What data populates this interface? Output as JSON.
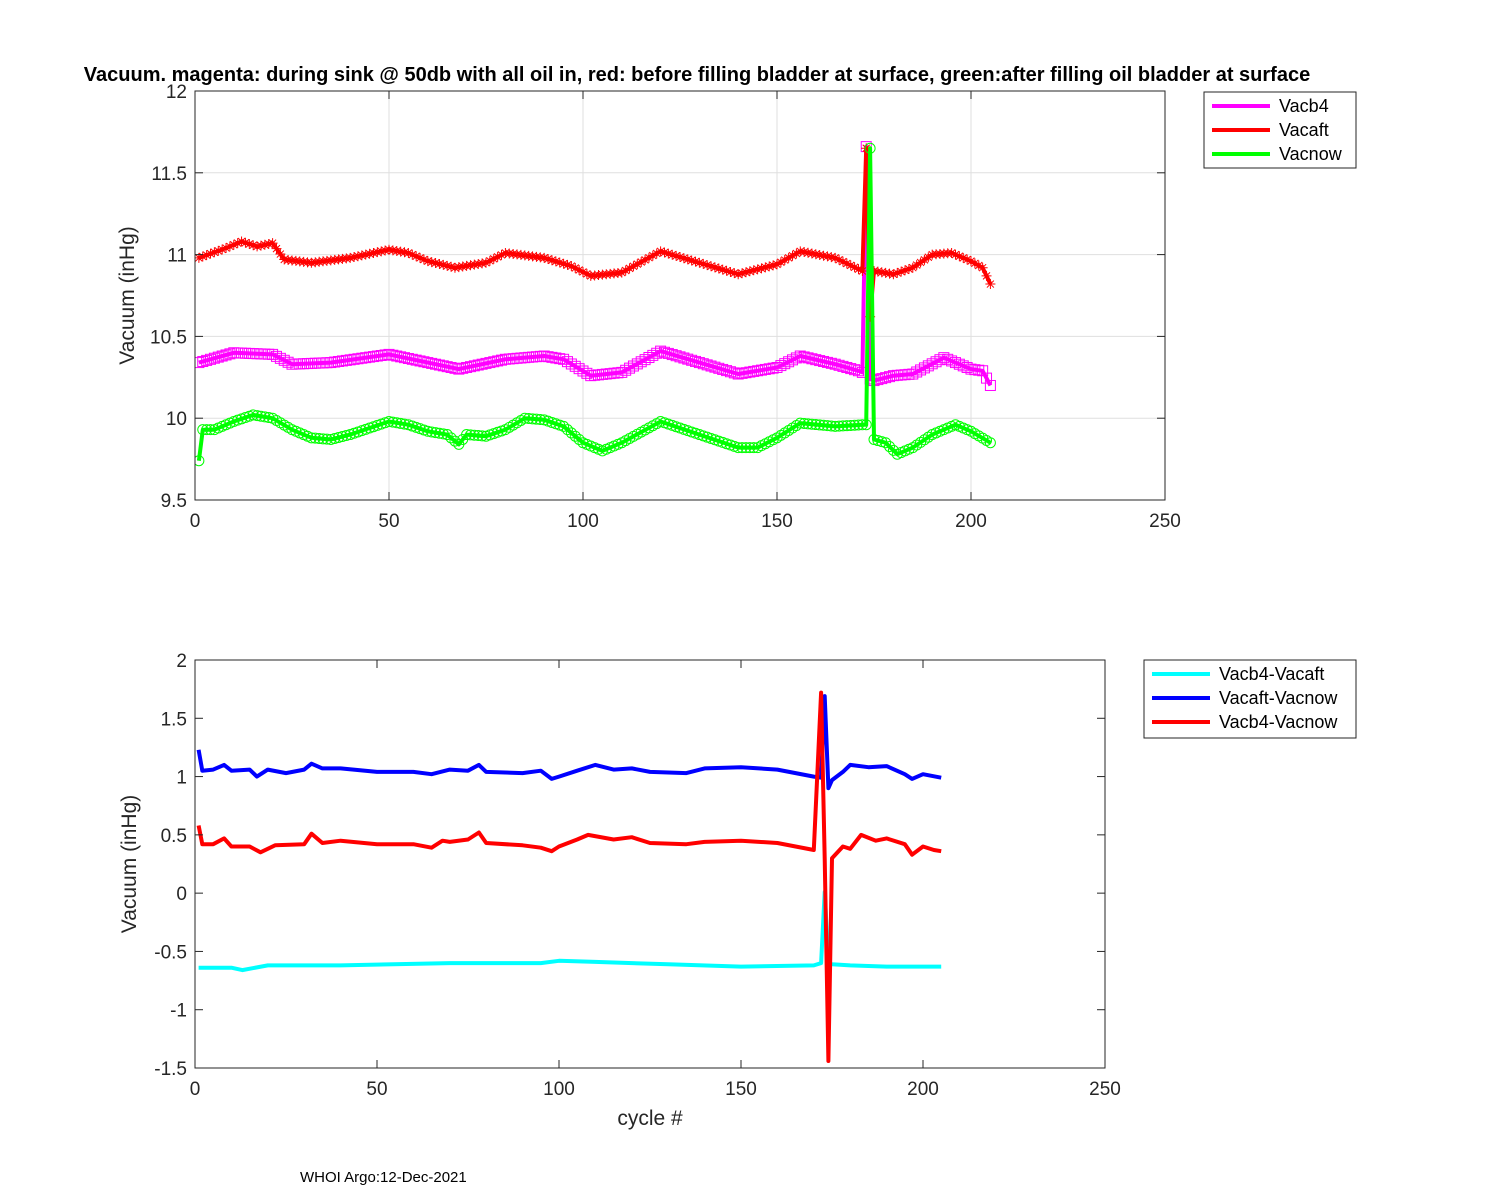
{
  "figure": {
    "title": "Vacuum. magenta: during sink @ 50db with all oil in, red: before filling bladder at surface, green:after filling oil bladder at surface",
    "footer": "WHOI Argo:12-Dec-2021"
  },
  "chart_data": [
    {
      "type": "line",
      "title": "Vacuum. magenta: during sink @ 50db with all oil in, red: before filling bladder at surface, green:after filling oil bladder at surface",
      "xlabel": "",
      "ylabel": "Vacuum (inHg)",
      "xlim": [
        0,
        250
      ],
      "ylim": [
        9.5,
        12
      ],
      "xticks": [
        "0",
        "50",
        "100",
        "150",
        "200",
        "250"
      ],
      "yticks": [
        "9.5",
        "10",
        "10.5",
        "11",
        "11.5",
        "12"
      ],
      "grid": true,
      "legend_position": "outside-top-right",
      "series": [
        {
          "name": "Vacb4",
          "color": "#ff00ff",
          "marker": "square",
          "points": [
            [
              1,
              10.34
            ],
            [
              10,
              10.4
            ],
            [
              20,
              10.39
            ],
            [
              25,
              10.33
            ],
            [
              35,
              10.34
            ],
            [
              50,
              10.39
            ],
            [
              60,
              10.34
            ],
            [
              68,
              10.3
            ],
            [
              80,
              10.36
            ],
            [
              90,
              10.38
            ],
            [
              95,
              10.36
            ],
            [
              102,
              10.26
            ],
            [
              110,
              10.28
            ],
            [
              120,
              10.41
            ],
            [
              130,
              10.34
            ],
            [
              140,
              10.27
            ],
            [
              150,
              10.31
            ],
            [
              156,
              10.38
            ],
            [
              165,
              10.33
            ],
            [
              171,
              10.29
            ],
            [
              172,
              10.28
            ],
            [
              173,
              11.66
            ],
            [
              174,
              10.24
            ],
            [
              175,
              10.23
            ],
            [
              180,
              10.26
            ],
            [
              185,
              10.27
            ],
            [
              193,
              10.37
            ],
            [
              200,
              10.3
            ],
            [
              203,
              10.29
            ],
            [
              205,
              10.2
            ]
          ]
        },
        {
          "name": "Vacaft",
          "color": "#ff0000",
          "marker": "star",
          "points": [
            [
              1,
              10.98
            ],
            [
              8,
              11.04
            ],
            [
              12,
              11.08
            ],
            [
              16,
              11.05
            ],
            [
              20,
              11.07
            ],
            [
              23,
              10.97
            ],
            [
              30,
              10.95
            ],
            [
              40,
              10.98
            ],
            [
              50,
              11.03
            ],
            [
              55,
              11.01
            ],
            [
              60,
              10.96
            ],
            [
              67,
              10.92
            ],
            [
              75,
              10.95
            ],
            [
              80,
              11.01
            ],
            [
              90,
              10.98
            ],
            [
              97,
              10.93
            ],
            [
              102,
              10.87
            ],
            [
              110,
              10.89
            ],
            [
              120,
              11.02
            ],
            [
              130,
              10.95
            ],
            [
              140,
              10.88
            ],
            [
              150,
              10.94
            ],
            [
              156,
              11.02
            ],
            [
              165,
              10.98
            ],
            [
              172,
              10.9
            ],
            [
              173,
              11.65
            ],
            [
              174,
              10.62
            ],
            [
              175,
              10.9
            ],
            [
              180,
              10.88
            ],
            [
              185,
              10.92
            ],
            [
              190,
              11.0
            ],
            [
              195,
              11.01
            ],
            [
              200,
              10.96
            ],
            [
              203,
              10.92
            ],
            [
              205,
              10.82
            ]
          ]
        },
        {
          "name": "Vacnow",
          "color": "#00ff00",
          "marker": "circle",
          "points": [
            [
              1,
              9.74
            ],
            [
              2,
              9.93
            ],
            [
              5,
              9.93
            ],
            [
              10,
              9.98
            ],
            [
              15,
              10.02
            ],
            [
              20,
              10.0
            ],
            [
              25,
              9.93
            ],
            [
              30,
              9.88
            ],
            [
              35,
              9.87
            ],
            [
              40,
              9.9
            ],
            [
              45,
              9.94
            ],
            [
              50,
              9.98
            ],
            [
              55,
              9.96
            ],
            [
              60,
              9.92
            ],
            [
              65,
              9.9
            ],
            [
              68,
              9.84
            ],
            [
              70,
              9.9
            ],
            [
              75,
              9.89
            ],
            [
              80,
              9.93
            ],
            [
              85,
              10.0
            ],
            [
              90,
              9.99
            ],
            [
              95,
              9.95
            ],
            [
              100,
              9.85
            ],
            [
              105,
              9.8
            ],
            [
              110,
              9.85
            ],
            [
              120,
              9.98
            ],
            [
              130,
              9.9
            ],
            [
              140,
              9.82
            ],
            [
              145,
              9.82
            ],
            [
              150,
              9.88
            ],
            [
              156,
              9.97
            ],
            [
              165,
              9.95
            ],
            [
              172,
              9.96
            ],
            [
              173,
              9.96
            ],
            [
              174,
              11.65
            ],
            [
              175,
              9.87
            ],
            [
              178,
              9.85
            ],
            [
              181,
              9.78
            ],
            [
              185,
              9.82
            ],
            [
              190,
              9.9
            ],
            [
              196,
              9.96
            ],
            [
              200,
              9.92
            ],
            [
              205,
              9.85
            ]
          ]
        }
      ]
    },
    {
      "type": "line",
      "title": "",
      "xlabel": "cycle #",
      "ylabel": "Vacuum (inHg)",
      "xlim": [
        0,
        250
      ],
      "ylim": [
        -1.5,
        2
      ],
      "xticks": [
        "0",
        "50",
        "100",
        "150",
        "200",
        "250"
      ],
      "yticks": [
        "-1.5",
        "-1",
        "-0.5",
        "0",
        "0.5",
        "1",
        "1.5",
        "2"
      ],
      "grid": false,
      "legend_position": "outside-top-right",
      "series": [
        {
          "name": "Vacb4-Vacaft",
          "color": "#00ffff",
          "points": [
            [
              1,
              -0.64
            ],
            [
              10,
              -0.64
            ],
            [
              13,
              -0.66
            ],
            [
              20,
              -0.62
            ],
            [
              40,
              -0.62
            ],
            [
              70,
              -0.6
            ],
            [
              80,
              -0.6
            ],
            [
              95,
              -0.6
            ],
            [
              100,
              -0.58
            ],
            [
              110,
              -0.59
            ],
            [
              130,
              -0.61
            ],
            [
              150,
              -0.63
            ],
            [
              170,
              -0.62
            ],
            [
              172,
              -0.6
            ],
            [
              173,
              0.01
            ],
            [
              174,
              -0.6
            ],
            [
              175,
              -0.61
            ],
            [
              180,
              -0.62
            ],
            [
              190,
              -0.63
            ],
            [
              200,
              -0.63
            ],
            [
              205,
              -0.63
            ]
          ]
        },
        {
          "name": "Vacaft-Vacnow",
          "color": "#0000ff",
          "points": [
            [
              1,
              1.23
            ],
            [
              2,
              1.05
            ],
            [
              5,
              1.06
            ],
            [
              8,
              1.1
            ],
            [
              10,
              1.05
            ],
            [
              15,
              1.06
            ],
            [
              17,
              1.0
            ],
            [
              20,
              1.06
            ],
            [
              25,
              1.03
            ],
            [
              30,
              1.06
            ],
            [
              32,
              1.11
            ],
            [
              35,
              1.07
            ],
            [
              40,
              1.07
            ],
            [
              50,
              1.04
            ],
            [
              60,
              1.04
            ],
            [
              65,
              1.02
            ],
            [
              70,
              1.06
            ],
            [
              75,
              1.05
            ],
            [
              78,
              1.1
            ],
            [
              80,
              1.04
            ],
            [
              90,
              1.03
            ],
            [
              95,
              1.05
            ],
            [
              98,
              0.98
            ],
            [
              100,
              1.0
            ],
            [
              105,
              1.05
            ],
            [
              110,
              1.1
            ],
            [
              115,
              1.06
            ],
            [
              120,
              1.07
            ],
            [
              125,
              1.04
            ],
            [
              135,
              1.03
            ],
            [
              140,
              1.07
            ],
            [
              150,
              1.08
            ],
            [
              160,
              1.06
            ],
            [
              170,
              1.0
            ],
            [
              172,
              0.99
            ],
            [
              173,
              1.69
            ],
            [
              174,
              0.9
            ],
            [
              175,
              0.97
            ],
            [
              178,
              1.04
            ],
            [
              180,
              1.1
            ],
            [
              185,
              1.08
            ],
            [
              190,
              1.09
            ],
            [
              195,
              1.02
            ],
            [
              197,
              0.98
            ],
            [
              200,
              1.02
            ],
            [
              205,
              0.99
            ]
          ]
        },
        {
          "name": "Vacb4-Vacnow",
          "color": "#ff0000",
          "points": [
            [
              1,
              0.58
            ],
            [
              2,
              0.42
            ],
            [
              5,
              0.42
            ],
            [
              8,
              0.47
            ],
            [
              10,
              0.4
            ],
            [
              15,
              0.4
            ],
            [
              18,
              0.35
            ],
            [
              22,
              0.41
            ],
            [
              30,
              0.42
            ],
            [
              32,
              0.51
            ],
            [
              35,
              0.43
            ],
            [
              40,
              0.45
            ],
            [
              50,
              0.42
            ],
            [
              60,
              0.42
            ],
            [
              65,
              0.39
            ],
            [
              68,
              0.45
            ],
            [
              70,
              0.44
            ],
            [
              75,
              0.46
            ],
            [
              78,
              0.52
            ],
            [
              80,
              0.43
            ],
            [
              90,
              0.41
            ],
            [
              95,
              0.39
            ],
            [
              98,
              0.36
            ],
            [
              100,
              0.4
            ],
            [
              105,
              0.46
            ],
            [
              108,
              0.5
            ],
            [
              115,
              0.46
            ],
            [
              120,
              0.48
            ],
            [
              125,
              0.43
            ],
            [
              135,
              0.42
            ],
            [
              140,
              0.44
            ],
            [
              150,
              0.45
            ],
            [
              160,
              0.43
            ],
            [
              170,
              0.37
            ],
            [
              172,
              1.72
            ],
            [
              173,
              0.3
            ],
            [
              174,
              -1.44
            ],
            [
              175,
              0.3
            ],
            [
              178,
              0.4
            ],
            [
              180,
              0.38
            ],
            [
              183,
              0.5
            ],
            [
              187,
              0.45
            ],
            [
              190,
              0.47
            ],
            [
              195,
              0.42
            ],
            [
              197,
              0.33
            ],
            [
              200,
              0.4
            ],
            [
              203,
              0.37
            ],
            [
              205,
              0.36
            ]
          ]
        }
      ]
    }
  ]
}
